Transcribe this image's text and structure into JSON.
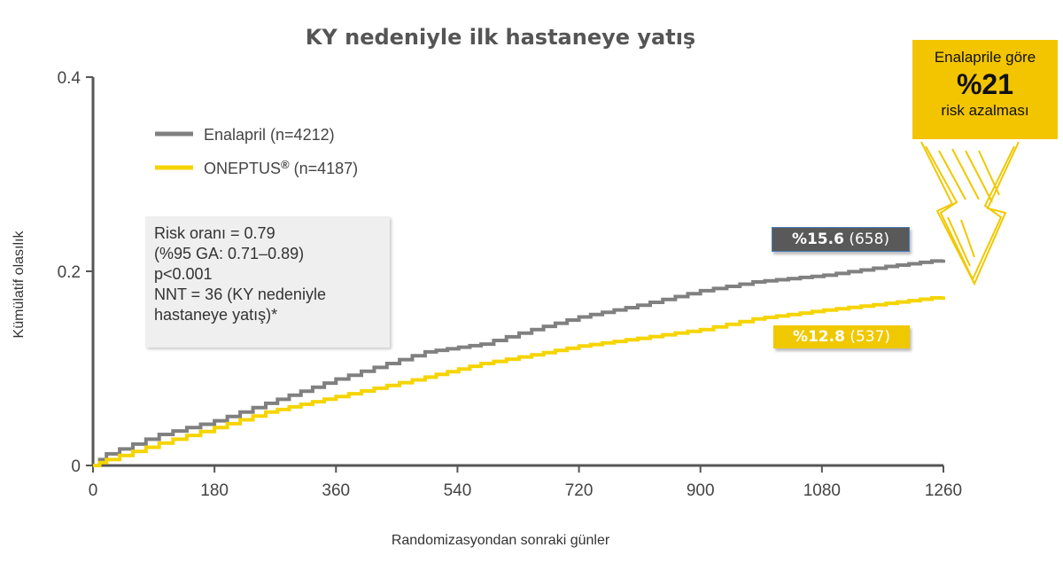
{
  "chart_data": {
    "type": "line",
    "title": "KY nedeniyle ilk hastaneye yatış",
    "xlabel": "Randomizasyondan  sonraki günler",
    "ylabel": "Kümülatif olasılık",
    "xlim": [
      0,
      1260
    ],
    "ylim": [
      0,
      0.4
    ],
    "xticks": [
      "0",
      "180",
      "360",
      "540",
      "720",
      "900",
      "1080",
      "1260"
    ],
    "yticks": [
      "0",
      "0.2",
      "0.4"
    ],
    "grid": false,
    "legend_position": "top-left",
    "series": [
      {
        "name": "Enalapril (n=4212)",
        "color": "#808080",
        "x": [
          0,
          20,
          98,
          180,
          256,
          360,
          492,
          575,
          650,
          720,
          807,
          900,
          978,
          1083,
          1175,
          1260
        ],
        "y": [
          0,
          0.012,
          0.032,
          0.046,
          0.064,
          0.089,
          0.117,
          0.125,
          0.14,
          0.153,
          0.165,
          0.18,
          0.189,
          0.196,
          0.205,
          0.212
        ]
      },
      {
        "name": "ONEPTUS® (n=4187)",
        "color": "#f5d400",
        "x": [
          0,
          20,
          98,
          180,
          256,
          360,
          492,
          575,
          650,
          720,
          807,
          900,
          978,
          1083,
          1175,
          1260
        ],
        "y": [
          0,
          0.006,
          0.023,
          0.039,
          0.055,
          0.071,
          0.091,
          0.105,
          0.114,
          0.123,
          0.131,
          0.14,
          0.151,
          0.16,
          0.167,
          0.174
        ]
      }
    ],
    "legend": {
      "enalapril": "Enalapril (n=4212)",
      "oneptus_name": "ONEPTUS",
      "oneptus_mark": "®",
      "oneptus_n": " (n=4187)"
    },
    "annotations": {
      "stats": [
        "Risk oranı = 0.79",
        "(%95 GA: 0.71–0.89)",
        "p<0.001",
        "NNT = 36 (KY nedeniyle",
        "hastaneye yatış)*"
      ],
      "enalapril_label_pct": "%15.6",
      "enalapril_label_n": " (658)",
      "enalapril_label_color": "#595959",
      "oneptus_label_pct": "%12.8",
      "oneptus_label_n": " (537)",
      "oneptus_label_color": "#f0c800",
      "callout_line1": "Enalaprile göre",
      "callout_big": "%21",
      "callout_line2": "risk azalması"
    }
  }
}
